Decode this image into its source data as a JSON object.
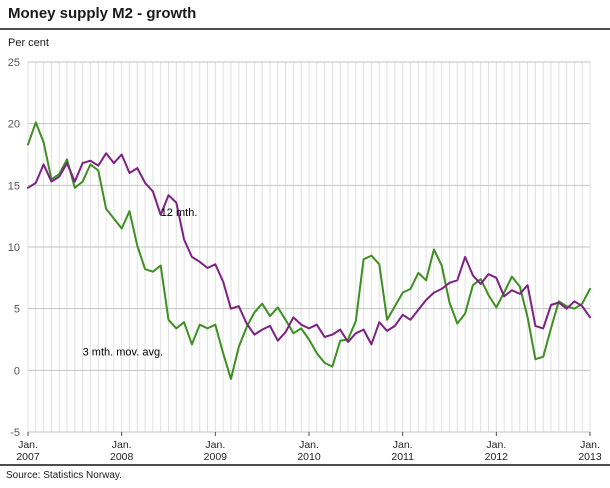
{
  "header": {
    "title": "Money supply M2 - growth",
    "y_axis_unit": "Per cent"
  },
  "footer": {
    "source": "Source: Statistics Norway."
  },
  "chart_data": {
    "type": "line",
    "title": "Money supply M2 - growth",
    "ylabel": "Per cent",
    "ylim": [
      -5,
      25
    ],
    "ytick_step": 5,
    "x_start": "Jan. 2007",
    "x_end": "Jan. 2013",
    "x_tick_month_label": "Jan.",
    "x_tick_years": [
      "2007",
      "2008",
      "2009",
      "2010",
      "2011",
      "2012",
      "2013"
    ],
    "grid": {
      "horizontal": true,
      "vertical_monthly": true,
      "horizontal_color": "#c2c2c2",
      "vertical_color": "#e0e0e0"
    },
    "legend_position": "inline-annotations",
    "series": [
      {
        "name": "3 mth. mov. avg.",
        "color": "#3e8f22",
        "values": [
          18.3,
          20.1,
          18.5,
          15.5,
          15.9,
          17.1,
          14.8,
          15.3,
          16.7,
          16.2,
          13.1,
          12.3,
          11.5,
          12.9,
          10.1,
          8.2,
          8.0,
          8.5,
          4.1,
          3.4,
          3.9,
          2.1,
          3.7,
          3.4,
          3.7,
          1.4,
          -0.7,
          1.9,
          3.5,
          4.7,
          5.4,
          4.4,
          5.1,
          4.1,
          3.0,
          3.4,
          2.5,
          1.4,
          0.6,
          0.3,
          2.4,
          2.5,
          4.0,
          9.0,
          9.3,
          8.6,
          4.1,
          5.2,
          6.3,
          6.6,
          7.9,
          7.3,
          9.8,
          8.5,
          5.5,
          3.8,
          4.6,
          6.9,
          7.4,
          6.1,
          5.1,
          6.3,
          7.6,
          6.8,
          4.3,
          0.9,
          1.1,
          3.4,
          5.6,
          5.2,
          5.0,
          5.4,
          6.6
        ]
      },
      {
        "name": "12 mth.",
        "color": "#7d2182",
        "values": [
          14.8,
          15.2,
          16.7,
          15.3,
          15.7,
          16.8,
          15.3,
          16.8,
          17.0,
          16.6,
          17.6,
          16.8,
          17.5,
          16.0,
          16.4,
          15.2,
          14.5,
          12.6,
          14.2,
          13.6,
          10.6,
          9.2,
          8.8,
          8.3,
          8.6,
          7.2,
          5.0,
          5.2,
          3.8,
          2.9,
          3.3,
          3.6,
          2.4,
          3.1,
          4.3,
          3.7,
          3.4,
          3.7,
          2.7,
          2.9,
          3.3,
          2.3,
          3.0,
          3.3,
          2.1,
          3.9,
          3.2,
          3.6,
          4.5,
          4.1,
          4.9,
          5.7,
          6.3,
          6.6,
          7.1,
          7.3,
          9.2,
          7.7,
          7.0,
          7.8,
          7.5,
          6.0,
          6.5,
          6.2,
          6.9,
          3.6,
          3.4,
          5.3,
          5.5,
          5.0,
          5.6,
          5.2,
          4.3
        ]
      }
    ],
    "annotations": [
      {
        "text": "12 mth.",
        "x_index": 17,
        "y_value": 12.5
      },
      {
        "text": "3 mth. mov. avg.",
        "x_index": 7,
        "y_value": 1.2
      }
    ],
    "axis_label_color": "#555555",
    "x_label_color": "#222222",
    "tick_color": "#4d4d4d"
  }
}
